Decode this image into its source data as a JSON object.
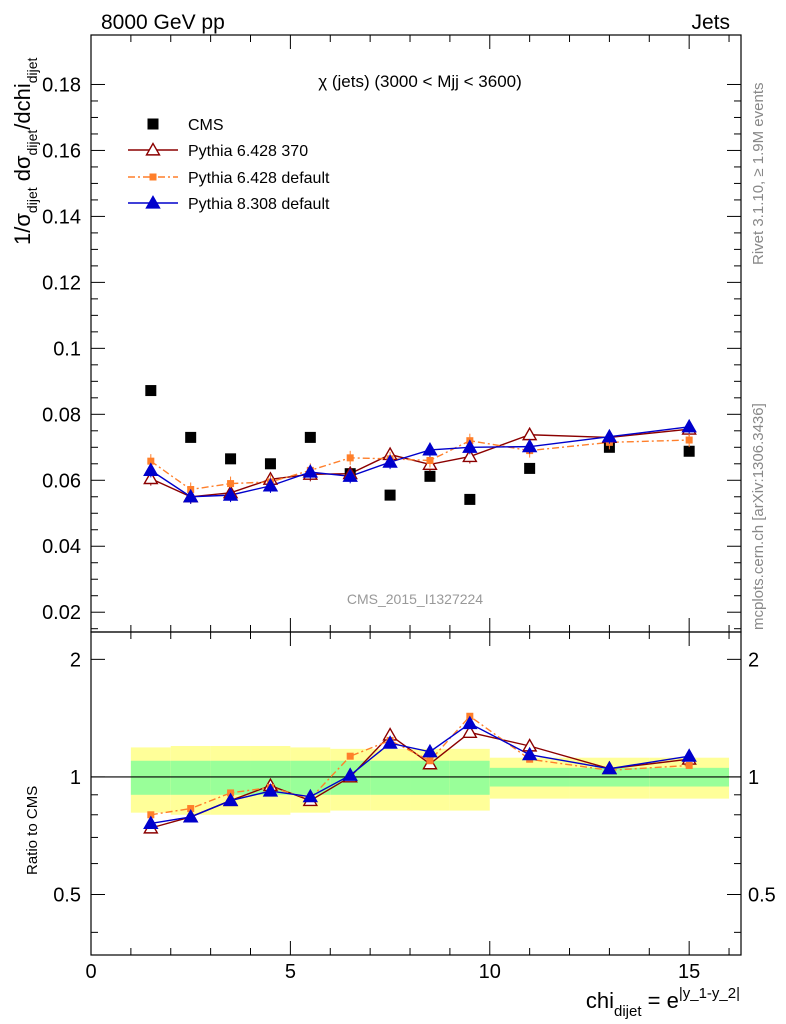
{
  "header": {
    "left": "8000 GeV pp",
    "right": "Jets"
  },
  "side_labels": {
    "rivet": "Rivet 3.1.10, ≥ 1.9M events",
    "mcplots": "mcplots.cern.ch [arXiv:1306.3436]"
  },
  "main_plot": {
    "title": "χ (jets) (3000 < Mjj < 3600)",
    "watermark": "CMS_2015_I1327224",
    "ylabel_parts": {
      "a": "1/σ",
      "b": "dijet",
      "c": " dσ",
      "d": "dijet",
      "e": "/dchi",
      "f": "dijet"
    },
    "yticks": [
      "0.02",
      "0.04",
      "0.06",
      "0.08",
      "0.1",
      "0.12",
      "0.14",
      "0.16",
      "0.18"
    ]
  },
  "ratio_plot": {
    "ylabel": "Ratio to CMS",
    "yticks": [
      "0.5",
      "1",
      "2"
    ]
  },
  "xaxis": {
    "ticks": [
      "0",
      "5",
      "10",
      "15"
    ],
    "label_parts": {
      "a": "chi",
      "b": "dijet",
      "c": " = e",
      "d": "|y_1-y_2|"
    }
  },
  "colors": {
    "cms": "#000000",
    "py6_370": "#8b0000",
    "py6_default": "#ff7f2a",
    "py8_default": "#0000cc",
    "band_inner": "#99ff99",
    "band_outer": "#ffff99"
  },
  "chart_data": {
    "type": "scatter",
    "x": [
      1.5,
      2.5,
      3.5,
      4.5,
      5.5,
      6.5,
      7.5,
      8.5,
      9.5,
      11,
      13,
      15
    ],
    "xlim": [
      0,
      16.3
    ],
    "ylim": [
      0.014,
      0.195
    ],
    "ratio_ylim": [
      0.35,
      2.35
    ],
    "ratio_scale": "log",
    "legend_position": "top-left",
    "series": [
      {
        "name": "CMS",
        "values": [
          0.0872,
          0.073,
          0.0665,
          0.065,
          0.073,
          0.062,
          0.0555,
          0.0612,
          0.0542,
          0.0636,
          0.07,
          0.0688
        ]
      },
      {
        "name": "Pythia 6.428 370",
        "values": [
          0.0605,
          0.055,
          0.0562,
          0.0603,
          0.0618,
          0.062,
          0.0678,
          0.0648,
          0.0672,
          0.0738,
          0.073,
          0.0755
        ]
      },
      {
        "name": "Pythia 6.428 default",
        "values": [
          0.0658,
          0.0572,
          0.059,
          0.0595,
          0.063,
          0.0668,
          0.0665,
          0.066,
          0.072,
          0.069,
          0.0715,
          0.0722
        ]
      },
      {
        "name": "Pythia 8.308 default",
        "values": [
          0.063,
          0.055,
          0.0555,
          0.0583,
          0.0625,
          0.0612,
          0.0655,
          0.0692,
          0.07,
          0.0702,
          0.0732,
          0.0762
        ]
      }
    ],
    "ratios": [
      {
        "name": "Pythia 6.428 370",
        "values": [
          0.74,
          0.79,
          0.87,
          0.95,
          0.87,
          1.0,
          1.28,
          1.08,
          1.3,
          1.2,
          1.05,
          1.11
        ]
      },
      {
        "name": "Pythia 6.428 default",
        "values": [
          0.8,
          0.83,
          0.91,
          0.94,
          0.88,
          1.13,
          1.24,
          1.1,
          1.43,
          1.11,
          1.04,
          1.07
        ]
      },
      {
        "name": "Pythia 8.308 default",
        "values": [
          0.76,
          0.79,
          0.87,
          0.92,
          0.89,
          1.01,
          1.22,
          1.16,
          1.37,
          1.14,
          1.05,
          1.13
        ]
      }
    ],
    "uncertainty_bands": {
      "edges": [
        1,
        2,
        3,
        4,
        5,
        6,
        7,
        8,
        9,
        10,
        12,
        14,
        16
      ],
      "inner": [
        0.1,
        0.1,
        0.1,
        0.1,
        0.1,
        0.1,
        0.1,
        0.1,
        0.1,
        0.055,
        0.055,
        0.055
      ],
      "outer": [
        0.19,
        0.2,
        0.2,
        0.2,
        0.19,
        0.18,
        0.18,
        0.18,
        0.18,
        0.12,
        0.12,
        0.12
      ]
    }
  }
}
